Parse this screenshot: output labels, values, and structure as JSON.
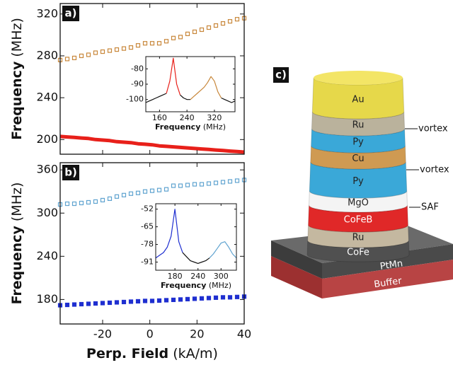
{
  "chart_data": [
    {
      "type": "scatter",
      "label": "a)",
      "ylabel": "Frequency",
      "ylabel_unit": "(MHz)",
      "xlim": [
        -38,
        40
      ],
      "ylim": [
        186,
        330
      ],
      "yticks": [
        200,
        240,
        280,
        320
      ],
      "x": [
        -38,
        -35,
        -32,
        -29,
        -26,
        -23,
        -20,
        -17,
        -14,
        -11,
        -8,
        -5,
        -2,
        1,
        4,
        7,
        10,
        13,
        16,
        19,
        22,
        25,
        28,
        31,
        34,
        37,
        40
      ],
      "series": [
        {
          "color": "#c8873a",
          "style": "open-square",
          "values": [
            276,
            277,
            278,
            280,
            281,
            283,
            284,
            285,
            286,
            287,
            288,
            290,
            292,
            292,
            292,
            294,
            297,
            298,
            301,
            303,
            305,
            307,
            309,
            311,
            313,
            315,
            316
          ]
        },
        {
          "color": "#e8201a",
          "style": "line",
          "values": [
            203,
            202.5,
            202,
            201.5,
            201,
            200,
            199.5,
            199,
            198,
            197.5,
            197,
            196,
            195.5,
            195,
            194,
            193.5,
            193,
            192.5,
            192,
            191.5,
            191,
            190.5,
            190,
            189.5,
            189,
            188.5,
            188
          ]
        }
      ],
      "inset": {
        "type": "line",
        "xlabel": "Frequency",
        "xlabel_unit": "(MHz)",
        "xlim": [
          120,
          380
        ],
        "xticks": [
          160,
          240,
          320
        ],
        "ylim": [
          -108,
          -72
        ],
        "yticks": [
          -80,
          -90,
          -100
        ],
        "x": [
          120,
          130,
          140,
          150,
          160,
          170,
          180,
          190,
          200,
          210,
          220,
          230,
          240,
          250,
          260,
          270,
          280,
          290,
          300,
          310,
          320,
          330,
          340,
          350,
          360,
          370,
          380
        ],
        "series": [
          {
            "color": "#111111",
            "values": [
              -102,
              -101,
              -100,
              -99,
              -98,
              -97,
              -96,
              null,
              null,
              null,
              -97,
              -99,
              -100,
              -100,
              null,
              null,
              null,
              null,
              null,
              null,
              null,
              null,
              -99,
              -100,
              -101,
              -102,
              -101
            ]
          },
          {
            "color": "#e8201a",
            "values": [
              null,
              null,
              null,
              null,
              null,
              null,
              -96,
              -88,
              -73,
              -90,
              -97,
              null,
              null,
              null,
              null,
              null,
              null,
              null,
              null,
              null,
              null,
              null,
              null,
              null,
              null,
              null,
              null
            ]
          },
          {
            "color": "#c8873a",
            "values": [
              null,
              null,
              null,
              null,
              null,
              null,
              null,
              null,
              null,
              null,
              null,
              null,
              null,
              -100,
              -98,
              -96,
              -94,
              -92,
              -89,
              -85,
              -88,
              -95,
              -99,
              null,
              null,
              null,
              null
            ]
          }
        ]
      }
    },
    {
      "type": "scatter",
      "label": "b)",
      "ylabel": "Frequency",
      "ylabel_unit": "(MHz)",
      "xlabel": "Perp. Field",
      "xlabel_unit": "(kA/m)",
      "xlim": [
        -38,
        40
      ],
      "xticks": [
        -20,
        0,
        20,
        40
      ],
      "ylim": [
        146,
        370
      ],
      "yticks": [
        180,
        240,
        300,
        360
      ],
      "x": [
        -38,
        -35,
        -32,
        -29,
        -26,
        -23,
        -20,
        -17,
        -14,
        -11,
        -8,
        -5,
        -2,
        1,
        4,
        7,
        10,
        13,
        16,
        19,
        22,
        25,
        28,
        31,
        34,
        37,
        40
      ],
      "series": [
        {
          "color": "#5fa3d0",
          "style": "open-square",
          "values": [
            312,
            313,
            313,
            314,
            315,
            316,
            318,
            320,
            323,
            325,
            327,
            328,
            330,
            331,
            332,
            333,
            338,
            338,
            339,
            340,
            340,
            341,
            342,
            343,
            344,
            345,
            346
          ]
        },
        {
          "color": "#1f2fd0",
          "style": "square",
          "values": [
            172,
            172.5,
            173,
            173.5,
            174,
            174.5,
            175,
            175.5,
            176,
            176.5,
            177,
            177.5,
            178,
            178,
            178.5,
            179,
            179.5,
            180,
            180.5,
            181,
            181.5,
            182,
            182.5,
            183,
            183,
            183.5,
            184
          ]
        }
      ],
      "inset": {
        "type": "line",
        "xlabel": "Frequency",
        "xlabel_unit": "(MHz)",
        "xlim": [
          130,
          340
        ],
        "xticks": [
          180,
          240,
          300
        ],
        "ylim": [
          -97,
          -48
        ],
        "yticks": [
          -52,
          -65,
          -78,
          -91
        ],
        "x": [
          130,
          140,
          150,
          160,
          170,
          180,
          190,
          200,
          210,
          220,
          230,
          240,
          250,
          260,
          270,
          280,
          290,
          300,
          310,
          320,
          330,
          340
        ],
        "series": [
          {
            "color": "#1f2fd0",
            "values": [
              -88,
              -86,
              -84,
              -80,
              -72,
              -52,
              -76,
              -84,
              null,
              null,
              null,
              null,
              null,
              null,
              null,
              null,
              null,
              null,
              null,
              null,
              null,
              null
            ]
          },
          {
            "color": "#111111",
            "values": [
              null,
              null,
              null,
              null,
              null,
              null,
              null,
              -84,
              -87,
              -90,
              -91,
              -92,
              -91,
              -90,
              -88,
              null,
              null,
              null,
              null,
              null,
              null,
              null
            ]
          },
          {
            "color": "#5fa3d0",
            "values": [
              null,
              null,
              null,
              null,
              null,
              null,
              null,
              null,
              null,
              null,
              null,
              null,
              null,
              null,
              -88,
              -85,
              -81,
              -77,
              -76,
              -80,
              -85,
              -88
            ]
          }
        ]
      }
    }
  ],
  "diagram": {
    "label": "c)",
    "layers": [
      "Au",
      "Ru",
      "Py",
      "Cu",
      "Py",
      "MgO",
      "CoFeB",
      "Ru",
      "CoFe"
    ],
    "substrate": [
      "PtMn",
      "Buffer"
    ],
    "annotations": [
      "vortex",
      "vortex",
      "SAF"
    ]
  }
}
